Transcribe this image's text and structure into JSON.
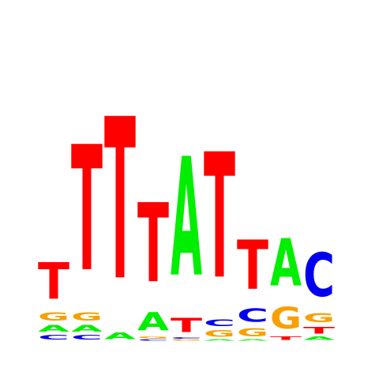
{
  "logo": {
    "colors": {
      "A": "#00ee00",
      "C": "#0000ee",
      "G": "#f7a000",
      "T": "#ff0000"
    },
    "columns": [
      {
        "stack": [
          {
            "base": "C",
            "bits": 0.07
          },
          {
            "base": "A",
            "bits": 0.1
          },
          {
            "base": "G",
            "bits": 0.12
          },
          {
            "base": "T",
            "bits": 0.55
          }
        ]
      },
      {
        "stack": [
          {
            "base": "C",
            "bits": 0.07
          },
          {
            "base": "A",
            "bits": 0.1
          },
          {
            "base": "G",
            "bits": 0.12
          },
          {
            "base": "T",
            "bits": 1.9
          }
        ]
      },
      {
        "stack": [
          {
            "base": "A",
            "bits": 0.1
          },
          {
            "base": "T",
            "bits": 2.45
          }
        ]
      },
      {
        "stack": [
          {
            "base": "C",
            "bits": 0.02
          },
          {
            "base": "G",
            "bits": 0.03
          },
          {
            "base": "A",
            "bits": 0.27
          },
          {
            "base": "T",
            "bits": 1.2
          }
        ]
      },
      {
        "stack": [
          {
            "base": "G",
            "bits": 0.02
          },
          {
            "base": "C",
            "bits": 0.02
          },
          {
            "base": "T",
            "bits": 0.22
          },
          {
            "base": "A",
            "bits": 1.8
          }
        ]
      },
      {
        "stack": [
          {
            "base": "A",
            "bits": 0.02
          },
          {
            "base": "G",
            "bits": 0.1
          },
          {
            "base": "C",
            "bits": 0.1
          },
          {
            "base": "T",
            "bits": 1.9
          }
        ]
      },
      {
        "stack": [
          {
            "base": "A",
            "bits": 0.02
          },
          {
            "base": "G",
            "bits": 0.12
          },
          {
            "base": "C",
            "bits": 0.2
          },
          {
            "base": "T",
            "bits": 0.75
          }
        ]
      },
      {
        "stack": [
          {
            "base": "T",
            "bits": 0.05
          },
          {
            "base": "G",
            "bits": 0.33
          },
          {
            "base": "A",
            "bits": 0.72
          }
        ]
      },
      {
        "stack": [
          {
            "base": "A",
            "bits": 0.05
          },
          {
            "base": "T",
            "bits": 0.1
          },
          {
            "base": "G",
            "bits": 0.14
          },
          {
            "base": "C",
            "bits": 0.66
          }
        ]
      }
    ]
  }
}
